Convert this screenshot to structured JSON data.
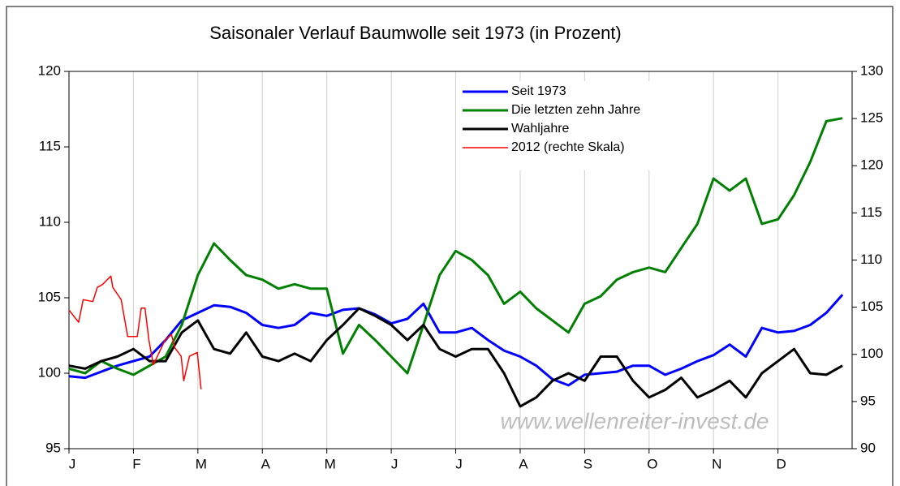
{
  "chart_data": {
    "type": "line",
    "title": "Saisonaler Verlauf Baumwolle seit 1973 (in Prozent)",
    "annotation": "www.wellenreiter-invest.de",
    "x": [
      0,
      0.25,
      0.5,
      0.75,
      1,
      1.25,
      1.5,
      1.75,
      2,
      2.25,
      2.5,
      2.75,
      3,
      3.25,
      3.5,
      3.75,
      4,
      4.25,
      4.5,
      4.75,
      5,
      5.25,
      5.5,
      5.75,
      6,
      6.25,
      6.5,
      6.75,
      7,
      7.25,
      7.5,
      7.75,
      8,
      8.25,
      8.5,
      8.75,
      9,
      9.25,
      9.5,
      9.75,
      10,
      10.25,
      10.5,
      10.75,
      11,
      11.25,
      11.5,
      11.75,
      12
    ],
    "xlim": [
      0,
      12.15
    ],
    "xticks": [
      {
        "value": 0,
        "label": "J"
      },
      {
        "value": 1,
        "label": "F"
      },
      {
        "value": 2,
        "label": "M"
      },
      {
        "value": 3,
        "label": "A"
      },
      {
        "value": 4,
        "label": "M"
      },
      {
        "value": 5,
        "label": "J"
      },
      {
        "value": 6,
        "label": "J"
      },
      {
        "value": 7,
        "label": "A"
      },
      {
        "value": 8,
        "label": "S"
      },
      {
        "value": 9,
        "label": "O"
      },
      {
        "value": 10,
        "label": "N"
      },
      {
        "value": 11,
        "label": "D"
      }
    ],
    "ylim": [
      95,
      120
    ],
    "yticks": [
      95,
      100,
      105,
      110,
      115,
      120
    ],
    "y2lim": [
      90,
      130
    ],
    "y2ticks": [
      90,
      95,
      100,
      105,
      110,
      115,
      120,
      125,
      130
    ],
    "grid": true,
    "series": [
      {
        "name": "Seit 1973",
        "color": "#0000ff",
        "values": [
          99.8,
          99.7,
          100.1,
          100.5,
          100.8,
          101.1,
          102.2,
          103.5,
          104.0,
          104.5,
          104.4,
          104.0,
          103.2,
          103.0,
          103.2,
          104.0,
          103.8,
          104.2,
          104.3,
          103.9,
          103.3,
          103.6,
          104.6,
          102.7,
          102.7,
          103.0,
          102.2,
          101.5,
          101.1,
          100.5,
          99.6,
          99.2,
          99.9,
          100.0,
          100.1,
          100.5,
          100.5,
          99.9,
          100.3,
          100.8,
          101.2,
          101.9,
          101.1,
          103.0,
          102.7,
          102.8,
          103.2,
          104.0,
          105.2
        ]
      },
      {
        "name": "Die letzten zehn Jahre",
        "color": "#008000",
        "values": [
          100.3,
          100.0,
          100.8,
          100.3,
          99.9,
          100.5,
          101.1,
          103.2,
          106.5,
          108.6,
          107.5,
          106.5,
          106.2,
          105.6,
          105.9,
          105.6,
          105.6,
          101.3,
          103.2,
          102.2,
          101.1,
          100.0,
          103.2,
          106.5,
          108.1,
          107.5,
          106.5,
          104.6,
          105.4,
          104.3,
          103.5,
          102.7,
          104.6,
          105.1,
          106.2,
          106.7,
          107.0,
          106.7,
          108.3,
          109.9,
          112.9,
          112.1,
          112.9,
          109.9,
          110.2,
          111.8,
          114.0,
          116.7,
          116.9
        ]
      },
      {
        "name": "Wahljahre",
        "color": "#000000",
        "values": [
          100.5,
          100.3,
          100.8,
          101.1,
          101.6,
          100.8,
          100.8,
          102.7,
          103.5,
          101.6,
          101.3,
          102.7,
          101.1,
          100.8,
          101.3,
          100.8,
          102.2,
          103.2,
          104.3,
          103.8,
          103.2,
          102.2,
          103.2,
          101.6,
          101.1,
          101.6,
          101.6,
          100.0,
          97.8,
          98.4,
          99.5,
          100.0,
          99.5,
          101.1,
          101.1,
          99.5,
          98.4,
          98.9,
          99.7,
          98.4,
          98.9,
          99.5,
          98.4,
          100.0,
          100.8,
          101.6,
          100.0,
          99.9,
          100.5
        ]
      },
      {
        "name": "2012 (rechte Skala)",
        "color": "#ff0000",
        "axis": "y2",
        "x": [
          0,
          0.15,
          0.22,
          0.37,
          0.44,
          0.52,
          0.65,
          0.68,
          0.81,
          0.91,
          1.06,
          1.12,
          1.18,
          1.24,
          1.31,
          1.49,
          1.59,
          1.64,
          1.74,
          1.78,
          1.87,
          1.99,
          2.05
        ],
        "values": [
          104.7,
          103.4,
          105.8,
          105.6,
          107.1,
          107.4,
          108.3,
          107.1,
          105.8,
          101.9,
          101.9,
          104.9,
          104.9,
          101.5,
          98.9,
          101.5,
          102.1,
          100.7,
          99.8,
          97.2,
          99.8,
          100.2,
          96.3
        ]
      }
    ]
  }
}
